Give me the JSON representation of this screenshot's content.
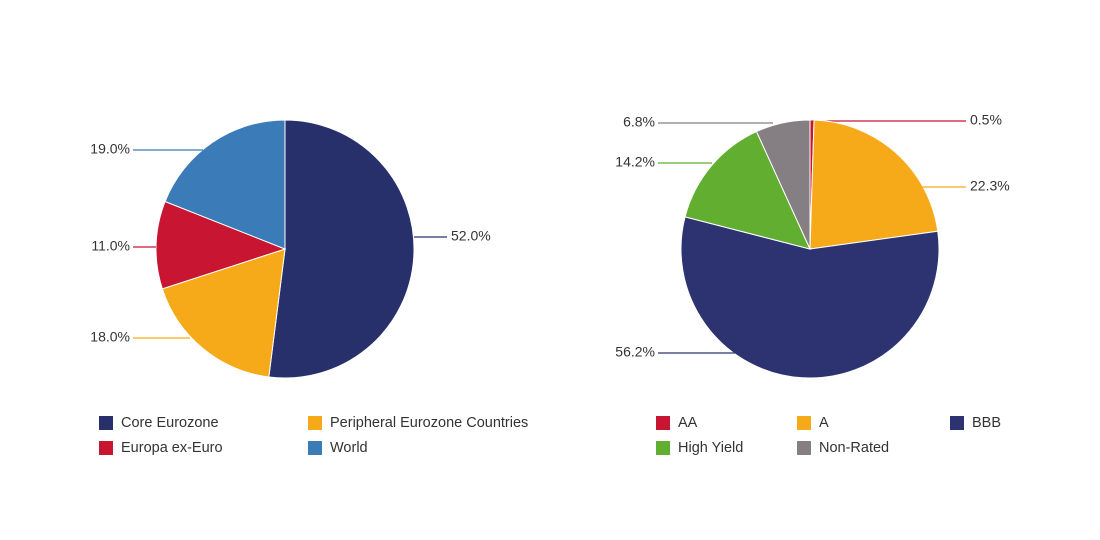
{
  "chart_data": [
    {
      "type": "pie",
      "slices": [
        {
          "label": "Core Eurozone",
          "value": 52.0,
          "display": "52.0%",
          "color": "#27306b"
        },
        {
          "label": "Peripheral Eurozone Countries",
          "value": 18.0,
          "display": "18.0%",
          "color": "#f6aa1a"
        },
        {
          "label": "Europa ex-Euro",
          "value": 11.0,
          "display": "11.0%",
          "color": "#c81632"
        },
        {
          "label": "World",
          "value": 19.0,
          "display": "19.0%",
          "color": "#3b7bb7"
        }
      ],
      "legend": {
        "placement": "bottom",
        "items": [
          "Core Eurozone",
          "Peripheral Eurozone Countries",
          "Europa ex-Euro",
          "World"
        ]
      }
    },
    {
      "type": "pie",
      "slices": [
        {
          "label": "AA",
          "value": 0.5,
          "display": "0.5%",
          "color": "#c81632"
        },
        {
          "label": "A",
          "value": 22.3,
          "display": "22.3%",
          "color": "#f6aa1a"
        },
        {
          "label": "BBB",
          "value": 56.2,
          "display": "56.2%",
          "color": "#2d3370"
        },
        {
          "label": "High Yield",
          "value": 14.2,
          "display": "14.2%",
          "color": "#62ae31"
        },
        {
          "label": "Non-Rated",
          "value": 6.8,
          "display": "6.8%",
          "color": "#857f84"
        }
      ],
      "legend": {
        "placement": "bottom",
        "items": [
          "AA",
          "A",
          "BBB",
          "High Yield",
          "Non-Rated"
        ]
      }
    }
  ]
}
